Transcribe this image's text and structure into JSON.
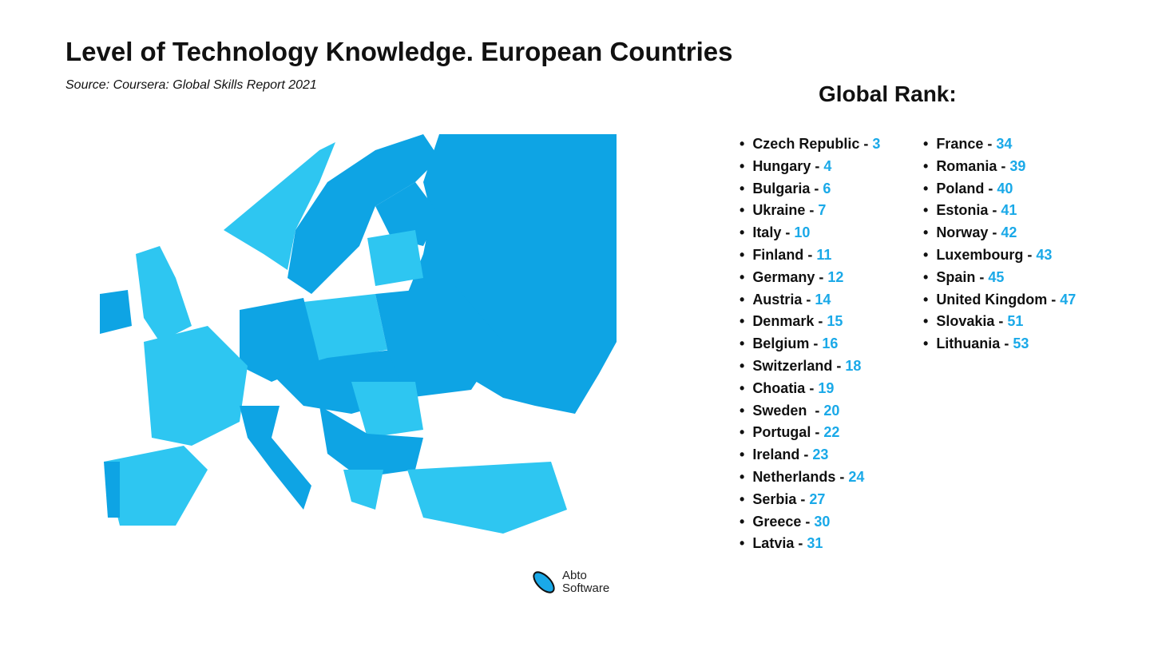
{
  "title": "Level of Technology Knowledge. European Countries",
  "source": "Source: Coursera: Global Skills Report 2021",
  "rank_title": "Global Rank:",
  "colors": {
    "sea": "#ffffff",
    "land_dark": "#0ea4e4",
    "land_light": "#2ec6f1",
    "outside": "#d6f6fb",
    "rank_number": "#1aa9e8"
  },
  "rankings": [
    {
      "country": "Czech Republic",
      "rank": "3"
    },
    {
      "country": "Hungary",
      "rank": "4"
    },
    {
      "country": "Bulgaria",
      "rank": "6"
    },
    {
      "country": "Ukraine",
      "rank": "7"
    },
    {
      "country": "Italy",
      "rank": "10"
    },
    {
      "country": "Finland",
      "rank": "11"
    },
    {
      "country": "Germany",
      "rank": "12"
    },
    {
      "country": "Austria",
      "rank": "14"
    },
    {
      "country": "Denmark",
      "rank": "15"
    },
    {
      "country": "Belgium",
      "rank": "16"
    },
    {
      "country": "Switzerland",
      "rank": "18"
    },
    {
      "country": "Choatia",
      "rank": "19"
    },
    {
      "country": "Sweden ",
      "rank": "20"
    },
    {
      "country": "Portugal",
      "rank": "22"
    },
    {
      "country": "Ireland",
      "rank": "23"
    },
    {
      "country": "Netherlands",
      "rank": "24"
    },
    {
      "country": "Serbia",
      "rank": "27"
    },
    {
      "country": "Greece",
      "rank": "30"
    },
    {
      "country": "Latvia",
      "rank": "31"
    },
    {
      "country": "France",
      "rank": "34"
    },
    {
      "country": "Romania",
      "rank": "39"
    },
    {
      "country": "Poland",
      "rank": "40"
    },
    {
      "country": "Estonia",
      "rank": "41"
    },
    {
      "country": "Norway",
      "rank": "42"
    },
    {
      "country": "Luxembourg",
      "rank": "43"
    },
    {
      "country": "Spain",
      "rank": "45"
    },
    {
      "country": "United Kingdom",
      "rank": "47"
    },
    {
      "country": "Slovakia",
      "rank": "51"
    },
    {
      "country": "Lithuania",
      "rank": "53"
    }
  ],
  "logo": {
    "line1": "Abto",
    "line2": "Software"
  }
}
